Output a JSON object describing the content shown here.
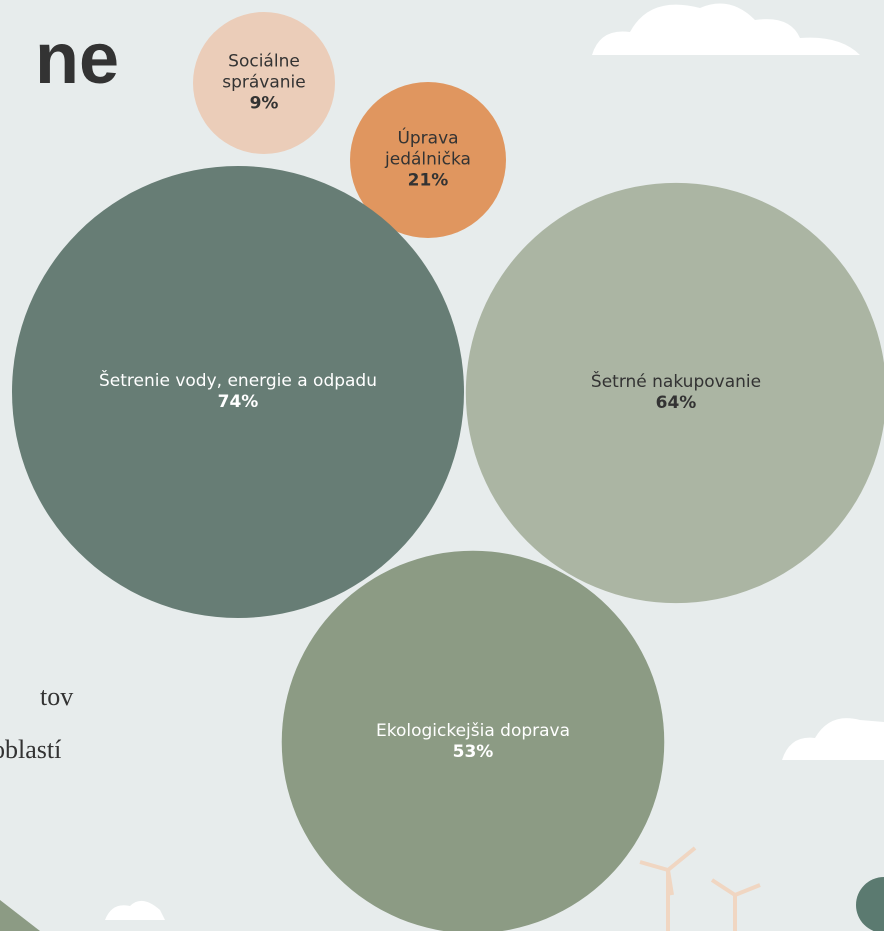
{
  "chart_data": {
    "type": "bubble",
    "categories": [
      "Sociálne správanie",
      "Úprava jedálnička",
      "Šetrenie vody, energie a odpadu",
      "Šetrné nakupovanie",
      "Ekologickejšia doprava"
    ],
    "values": [
      9,
      21,
      74,
      64,
      53
    ],
    "value_labels": [
      "9%",
      "21%",
      "74%",
      "64%",
      "53%"
    ],
    "colors": [
      "#ebcdb9",
      "#e0965f",
      "#677d75",
      "#abb5a3",
      "#8c9b84"
    ],
    "label_colors": [
      "#333333",
      "#333333",
      "#ffffff",
      "#333333",
      "#ffffff"
    ]
  },
  "background_text": [
    "ne",
    "tov",
    "oblastí"
  ]
}
